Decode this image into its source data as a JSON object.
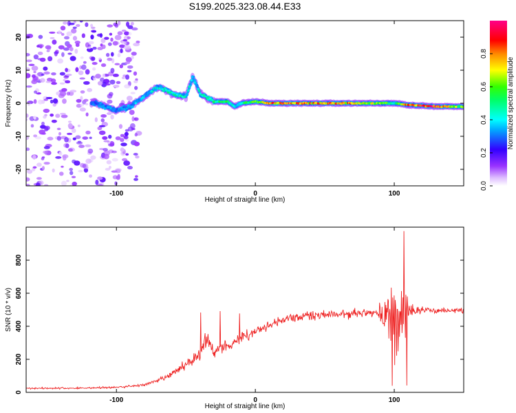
{
  "window": {
    "title": "S199.2025.323.08.44.E33"
  },
  "chart_data": [
    {
      "type": "heatmap",
      "title": "S199.2025.323.08.44.E33",
      "xlabel": "Height of straight line (km)",
      "ylabel": "Frequency (Hz)",
      "xlim": [
        -165,
        150
      ],
      "ylim": [
        -25,
        25
      ],
      "xticks": [
        -100,
        0,
        100
      ],
      "yticks": [
        -20,
        -10,
        0,
        10,
        20
      ],
      "colorbar": {
        "label": "Normalized spectral amplitude",
        "range": [
          0,
          1
        ],
        "ticks": [
          0.0,
          0.2,
          0.4,
          0.6,
          0.8
        ],
        "tick_labels": [
          "0.0",
          "0.2",
          "0.4",
          "0.6",
          "0.8"
        ],
        "colormap": "rainbow (white-violet-blue-cyan-green-yellow-red-magenta)"
      },
      "ridge": {
        "description": "High-amplitude spectral ridge near 0 Hz; scattered low-amplitude noise for heights below -85 km",
        "x": [
          -115,
          -100,
          -90,
          -80,
          -70,
          -60,
          -50,
          -45,
          -40,
          -30,
          -20,
          -15,
          -10,
          0,
          10,
          20,
          40,
          60,
          80,
          95,
          100,
          110,
          130,
          150
        ],
        "freq_hz": [
          0,
          -2,
          -1,
          2,
          5,
          3,
          2,
          8,
          3,
          0.5,
          0.5,
          -1,
          0,
          0.5,
          0,
          0,
          0,
          0,
          0,
          0,
          0,
          -0.5,
          -1,
          -1
        ],
        "amplitude": [
          0.3,
          0.35,
          0.35,
          0.4,
          0.45,
          0.5,
          0.45,
          0.4,
          0.45,
          0.55,
          0.6,
          0.4,
          0.5,
          0.6,
          0.85,
          0.9,
          0.8,
          0.85,
          0.75,
          0.6,
          0.45,
          0.9,
          0.95,
          0.6
        ]
      }
    },
    {
      "type": "line",
      "xlabel": "Height of straight line (km)",
      "ylabel": "SNR (10 * v/v)",
      "xlim": [
        -165,
        150
      ],
      "ylim": [
        0,
        1000
      ],
      "xticks": [
        -100,
        0,
        100
      ],
      "yticks": [
        0,
        200,
        400,
        600,
        800
      ],
      "series": [
        {
          "name": "SNR",
          "color": "#ee2222",
          "x": [
            -165,
            -130,
            -100,
            -80,
            -70,
            -60,
            -50,
            -40,
            -35,
            -30,
            -20,
            -10,
            0,
            10,
            20,
            30,
            40,
            50,
            60,
            70,
            80,
            90,
            95,
            100,
            105,
            108,
            110,
            120,
            130,
            140,
            150
          ],
          "values": [
            25,
            25,
            30,
            45,
            70,
            110,
            170,
            230,
            320,
            250,
            290,
            330,
            370,
            410,
            440,
            455,
            465,
            470,
            470,
            475,
            480,
            485,
            470,
            400,
            470,
            520,
            490,
            500,
            495,
            495,
            495
          ],
          "noise_amplitude": [
            8,
            8,
            10,
            12,
            20,
            30,
            40,
            60,
            120,
            60,
            60,
            60,
            50,
            40,
            40,
            40,
            40,
            40,
            40,
            40,
            40,
            80,
            250,
            300,
            250,
            350,
            60,
            25,
            25,
            25,
            25
          ]
        }
      ]
    }
  ]
}
